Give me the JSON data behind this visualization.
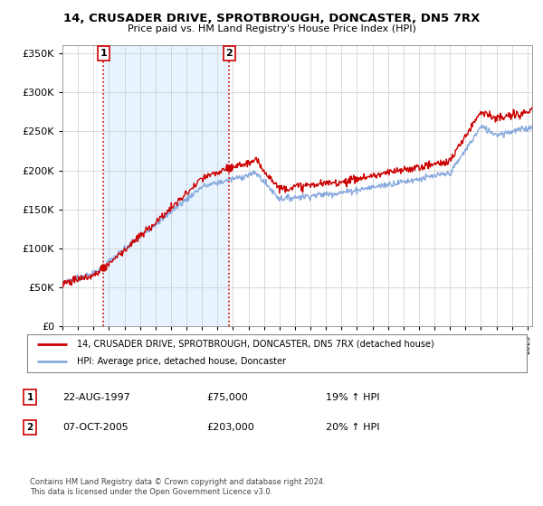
{
  "title": "14, CRUSADER DRIVE, SPROTBROUGH, DONCASTER, DN5 7RX",
  "subtitle": "Price paid vs. HM Land Registry's House Price Index (HPI)",
  "legend_line1": "14, CRUSADER DRIVE, SPROTBROUGH, DONCASTER, DN5 7RX (detached house)",
  "legend_line2": "HPI: Average price, detached house, Doncaster",
  "sale1_date": "22-AUG-1997",
  "sale1_price": "£75,000",
  "sale1_hpi": "19% ↑ HPI",
  "sale2_date": "07-OCT-2005",
  "sale2_price": "£203,000",
  "sale2_hpi": "20% ↑ HPI",
  "sale1_year": 1997.64,
  "sale1_value": 75000,
  "sale2_year": 2005.77,
  "sale2_value": 203000,
  "footer": "Contains HM Land Registry data © Crown copyright and database right 2024.\nThis data is licensed under the Open Government Licence v3.0.",
  "red_color": "#cc0000",
  "blue_color": "#88aadd",
  "shade_color": "#ddeeff",
  "background_color": "#ffffff",
  "grid_color": "#cccccc",
  "xlim_start": 1995.0,
  "xlim_end": 2025.3
}
